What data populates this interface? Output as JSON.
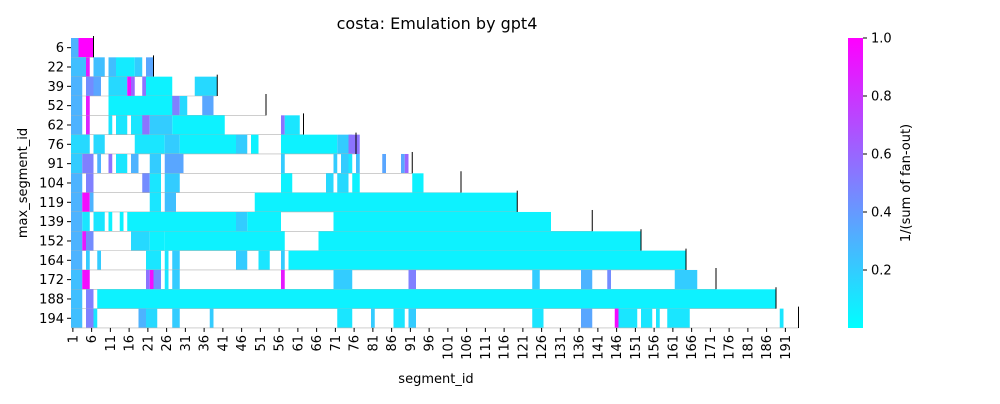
{
  "chart_data": {
    "type": "heatmap",
    "title": "costa: Emulation by gpt4",
    "xlabel": "segment_id",
    "ylabel": "max_segment_id",
    "x_min": 1,
    "x_max": 195,
    "x_ticks": [
      "1",
      "6",
      "11",
      "16",
      "21",
      "26",
      "31",
      "36",
      "41",
      "46",
      "51",
      "56",
      "61",
      "66",
      "71",
      "76",
      "81",
      "86",
      "91",
      "96",
      "101",
      "106",
      "111",
      "116",
      "121",
      "126",
      "131",
      "136",
      "141",
      "146",
      "151",
      "156",
      "161",
      "166",
      "171",
      "176",
      "181",
      "186",
      "191"
    ],
    "rows": [
      {
        "label": "6",
        "end": 6,
        "runs": [
          [
            1,
            2,
            0.3
          ],
          [
            3,
            6,
            1.0
          ]
        ]
      },
      {
        "label": "22",
        "end": 22,
        "runs": [
          [
            1,
            4,
            0.25
          ],
          [
            5,
            5,
            0.9
          ],
          [
            7,
            9,
            0.25
          ],
          [
            11,
            12,
            0.25
          ],
          [
            13,
            17,
            0.08
          ],
          [
            18,
            19,
            0.2
          ],
          [
            21,
            22,
            0.35
          ]
        ]
      },
      {
        "label": "39",
        "end": 39,
        "runs": [
          [
            1,
            3,
            0.3
          ],
          [
            5,
            6,
            0.45
          ],
          [
            7,
            8,
            0.35
          ],
          [
            11,
            15,
            0.15
          ],
          [
            16,
            16,
            0.95
          ],
          [
            17,
            17,
            0.6
          ],
          [
            20,
            20,
            0.55
          ],
          [
            21,
            27,
            0.05
          ],
          [
            34,
            39,
            0.15
          ]
        ]
      },
      {
        "label": "52",
        "end": 52,
        "runs": [
          [
            1,
            3,
            0.3
          ],
          [
            5,
            5,
            0.9
          ],
          [
            11,
            28,
            0.05
          ],
          [
            28,
            29,
            0.5
          ],
          [
            30,
            31,
            0.15
          ],
          [
            36,
            38,
            0.35
          ]
        ]
      },
      {
        "label": "62",
        "end": 62,
        "runs": [
          [
            1,
            3,
            0.3
          ],
          [
            5,
            5,
            0.85
          ],
          [
            11,
            11,
            0.1
          ],
          [
            13,
            15,
            0.1
          ],
          [
            17,
            20,
            0.1
          ],
          [
            20,
            21,
            0.55
          ],
          [
            22,
            27,
            0.2
          ],
          [
            28,
            41,
            0.05
          ],
          [
            57,
            57,
            0.55
          ],
          [
            58,
            61,
            0.1
          ]
        ]
      },
      {
        "label": "76",
        "end": 76,
        "runs": [
          [
            1,
            5,
            0.15
          ],
          [
            7,
            9,
            0.15
          ],
          [
            18,
            25,
            0.1
          ],
          [
            26,
            29,
            0.2
          ],
          [
            30,
            44,
            0.05
          ],
          [
            45,
            47,
            0.2
          ],
          [
            49,
            50,
            0.05
          ],
          [
            57,
            71,
            0.05
          ],
          [
            72,
            75,
            0.2
          ],
          [
            75,
            77,
            0.55
          ]
        ]
      },
      {
        "label": "91",
        "end": 91,
        "runs": [
          [
            1,
            3,
            0.2
          ],
          [
            4,
            6,
            0.5
          ],
          [
            8,
            8,
            0.3
          ],
          [
            11,
            11,
            0.55
          ],
          [
            13,
            15,
            0.1
          ],
          [
            17,
            18,
            0.3
          ],
          [
            22,
            24,
            0.2
          ],
          [
            26,
            30,
            0.35
          ],
          [
            57,
            57,
            0.2
          ],
          [
            71,
            71,
            0.2
          ],
          [
            73,
            74,
            0.2
          ],
          [
            75,
            75,
            0.1
          ],
          [
            77,
            77,
            0.25
          ],
          [
            84,
            84,
            0.35
          ],
          [
            89,
            89,
            0.35
          ],
          [
            90,
            90,
            0.6
          ]
        ]
      },
      {
        "label": "104",
        "end": 104,
        "runs": [
          [
            1,
            3,
            0.3
          ],
          [
            5,
            6,
            0.5
          ],
          [
            20,
            21,
            0.45
          ],
          [
            22,
            24,
            0.1
          ],
          [
            26,
            29,
            0.2
          ],
          [
            57,
            59,
            0.05
          ],
          [
            69,
            70,
            0.15
          ],
          [
            72,
            74,
            0.15
          ],
          [
            76,
            77,
            0.05
          ],
          [
            92,
            94,
            0.05
          ]
        ]
      },
      {
        "label": "119",
        "end": 119,
        "runs": [
          [
            1,
            3,
            0.3
          ],
          [
            4,
            5,
            0.95
          ],
          [
            6,
            6,
            0.3
          ],
          [
            22,
            24,
            0.1
          ],
          [
            26,
            28,
            0.25
          ],
          [
            50,
            70,
            0.05
          ],
          [
            71,
            119,
            0.05
          ]
        ]
      },
      {
        "label": "139",
        "end": 139,
        "runs": [
          [
            1,
            3,
            0.3
          ],
          [
            4,
            5,
            0.1
          ],
          [
            7,
            9,
            0.1
          ],
          [
            11,
            11,
            0.05
          ],
          [
            14,
            14,
            0.05
          ],
          [
            16,
            24,
            0.05
          ],
          [
            25,
            44,
            0.05
          ],
          [
            45,
            47,
            0.2
          ],
          [
            48,
            56,
            0.05
          ],
          [
            71,
            128,
            0.05
          ]
        ]
      },
      {
        "label": "152",
        "end": 152,
        "runs": [
          [
            1,
            3,
            0.3
          ],
          [
            4,
            4,
            0.9
          ],
          [
            5,
            6,
            0.45
          ],
          [
            17,
            21,
            0.15
          ],
          [
            22,
            25,
            0.05
          ],
          [
            26,
            57,
            0.05
          ],
          [
            67,
            152,
            0.05
          ]
        ]
      },
      {
        "label": "164",
        "end": 164,
        "runs": [
          [
            1,
            3,
            0.3
          ],
          [
            5,
            5,
            0.2
          ],
          [
            8,
            8,
            0.2
          ],
          [
            21,
            24,
            0.1
          ],
          [
            26,
            26,
            0.1
          ],
          [
            28,
            29,
            0.2
          ],
          [
            45,
            47,
            0.2
          ],
          [
            51,
            53,
            0.1
          ],
          [
            57,
            57,
            0.2
          ],
          [
            59,
            164,
            0.05
          ]
        ]
      },
      {
        "label": "172",
        "end": 172,
        "runs": [
          [
            1,
            3,
            0.25
          ],
          [
            4,
            5,
            0.95
          ],
          [
            21,
            21,
            0.55
          ],
          [
            22,
            22,
            0.95
          ],
          [
            23,
            24,
            0.45
          ],
          [
            26,
            26,
            0.1
          ],
          [
            28,
            29,
            0.2
          ],
          [
            57,
            57,
            0.9
          ],
          [
            71,
            75,
            0.2
          ],
          [
            91,
            92,
            0.5
          ],
          [
            124,
            125,
            0.2
          ],
          [
            137,
            139,
            0.3
          ],
          [
            144,
            144,
            0.45
          ],
          [
            162,
            167,
            0.2
          ]
        ]
      },
      {
        "label": "188",
        "end": 188,
        "runs": [
          [
            1,
            3,
            0.25
          ],
          [
            5,
            6,
            0.5
          ],
          [
            8,
            188,
            0.05
          ]
        ]
      },
      {
        "label": "194",
        "end": 194,
        "runs": [
          [
            1,
            3,
            0.25
          ],
          [
            5,
            6,
            0.5
          ],
          [
            7,
            7,
            0.1
          ],
          [
            19,
            20,
            0.3
          ],
          [
            21,
            23,
            0.15
          ],
          [
            28,
            29,
            0.2
          ],
          [
            38,
            38,
            0.2
          ],
          [
            72,
            75,
            0.1
          ],
          [
            81,
            81,
            0.2
          ],
          [
            87,
            89,
            0.1
          ],
          [
            91,
            92,
            0.2
          ],
          [
            124,
            126,
            0.1
          ],
          [
            137,
            139,
            0.35
          ],
          [
            146,
            146,
            0.95
          ],
          [
            147,
            151,
            0.1
          ],
          [
            153,
            155,
            0.1
          ],
          [
            157,
            157,
            0.1
          ],
          [
            160,
            165,
            0.1
          ],
          [
            190,
            190,
            0.1
          ]
        ]
      }
    ],
    "colorbar": {
      "label": "1/(sum of fan-out)",
      "min": 0.0,
      "max": 1.0,
      "ticks": [
        "0.2",
        "0.4",
        "0.6",
        "0.8",
        "1.0"
      ],
      "tick_values": [
        0.2,
        0.4,
        0.6,
        0.8,
        1.0
      ],
      "color_low": "#00ffff",
      "color_high": "#ff00ff"
    }
  }
}
